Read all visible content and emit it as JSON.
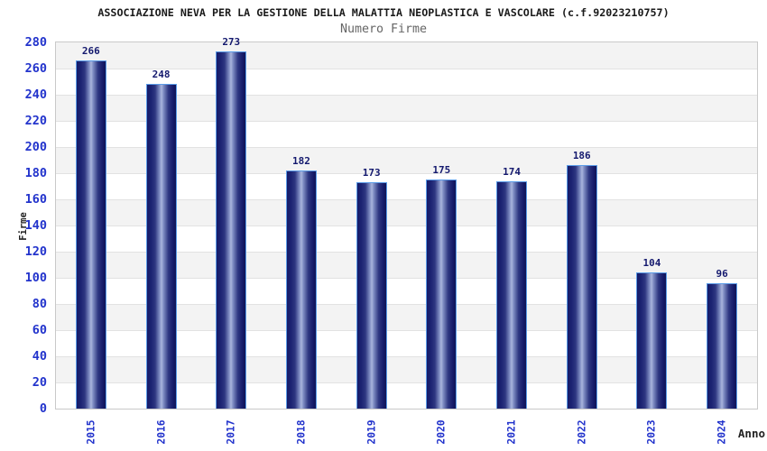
{
  "chart_data": {
    "type": "bar",
    "title": "ASSOCIAZIONE NEVA PER LA GESTIONE DELLA MALATTIA NEOPLASTICA E VASCOLARE (c.f.92023210757)",
    "subtitle": "Numero Firme",
    "xlabel": "Anno",
    "ylabel": "Firme",
    "categories": [
      "2015",
      "2016",
      "2017",
      "2018",
      "2019",
      "2020",
      "2021",
      "2022",
      "2023",
      "2024"
    ],
    "values": [
      266,
      248,
      273,
      182,
      173,
      175,
      174,
      186,
      104,
      96
    ],
    "ylim": [
      0,
      280
    ],
    "ytick_step": 20,
    "yticks": [
      0,
      20,
      40,
      60,
      80,
      100,
      120,
      140,
      160,
      180,
      200,
      220,
      240,
      260,
      280
    ],
    "grid": "horizontal alternating bands every 20 units, gray band at top (280-260)",
    "legend": "none",
    "value_labels": "above each bar",
    "colors": {
      "bar_dark": "#151b69",
      "bar_highlight": "#aab6dd",
      "bar_border": "#5b9ce8",
      "axis_text_blue": "#2233cc",
      "value_label": "#14196e",
      "band_gray": "#f3f3f3",
      "gridline": "#e2e2e2",
      "plot_border": "#c9c9c9",
      "title_text": "#1a1a1a",
      "subtitle_text": "#666666"
    }
  }
}
